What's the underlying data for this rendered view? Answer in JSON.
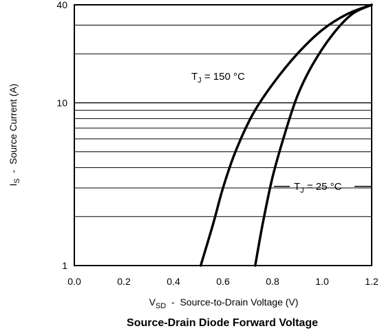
{
  "chart_data": {
    "type": "line",
    "title": "Source-Drain Diode Forward Voltage",
    "xlabel": {
      "symbol": "V",
      "sub": "SD",
      "text": "  -  Source-to-Drain Voltage (V)"
    },
    "ylabel": {
      "symbol": "I",
      "sub": "S",
      "text": "  -  Source Current (A)"
    },
    "xlim": [
      0.0,
      1.2
    ],
    "ylim": [
      1,
      40
    ],
    "yscale": "log",
    "xticks": [
      "0.0",
      "0.2",
      "0.4",
      "0.6",
      "0.8",
      "1.0",
      "1.2"
    ],
    "yticks": [
      {
        "value": 1,
        "label": "1"
      },
      {
        "value": 10,
        "label": "10"
      },
      {
        "value": 40,
        "label": "40"
      }
    ],
    "grid": true,
    "series": [
      {
        "name": "T_J = 150 °C",
        "x": [
          0.51,
          0.56,
          0.6,
          0.65,
          0.72,
          0.8,
          0.9,
          1.0,
          1.1,
          1.2
        ],
        "y": [
          1.0,
          1.8,
          3.0,
          5.0,
          8.5,
          13.0,
          20.0,
          28.0,
          35.0,
          40.0
        ]
      },
      {
        "name": "T_J = 25 °C",
        "x": [
          0.73,
          0.76,
          0.8,
          0.85,
          0.9,
          0.96,
          1.04,
          1.12,
          1.2
        ],
        "y": [
          1.0,
          1.8,
          3.5,
          6.5,
          11.0,
          17.0,
          26.0,
          35.0,
          40.0
        ]
      }
    ],
    "annotations": [
      {
        "label_main": "T",
        "label_sub": "J",
        "label_rest": " = 150  °C"
      },
      {
        "label_main": "T",
        "label_sub": "J",
        "label_rest": " = 25  °C"
      }
    ]
  }
}
